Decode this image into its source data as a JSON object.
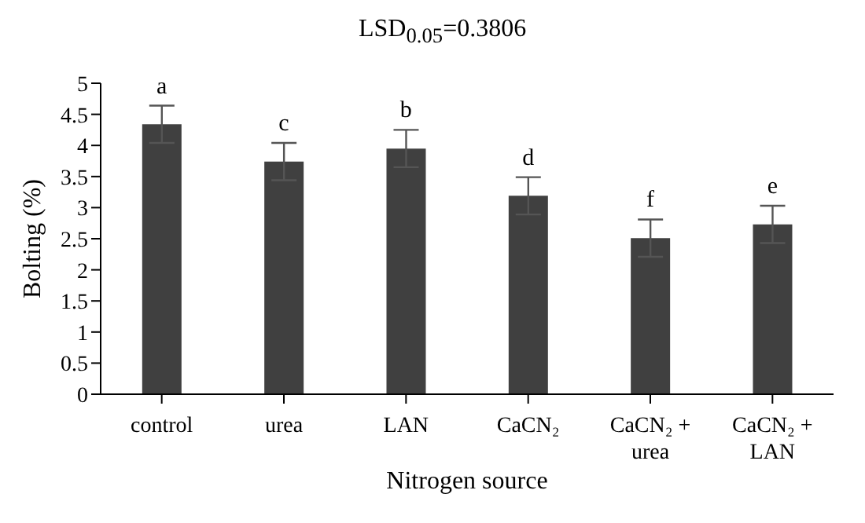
{
  "chart_data": {
    "type": "bar",
    "xlabel": "Nitrogen source",
    "ylabel": "Bolting (%)",
    "categories": [
      "control",
      "urea",
      "LAN",
      "CaCN₂",
      "CaCN₂ + urea",
      "CaCN₂ + LAN"
    ],
    "values": [
      4.34,
      3.74,
      3.95,
      3.19,
      2.51,
      2.73
    ],
    "errors": [
      0.3,
      0.3,
      0.3,
      0.3,
      0.3,
      0.3
    ],
    "color": "#404040",
    "ylim": [
      0,
      5
    ],
    "yticks": [
      0,
      0.5,
      1,
      1.5,
      2,
      2.5,
      3,
      3.5,
      4,
      4.5,
      5
    ],
    "grid": false,
    "legend": false,
    "annotations": [
      "LSD$_{0.05}$=0.3806",
      {
        "text": "a",
        "x": "control",
        "y": 4.64
      },
      {
        "text": "c",
        "x": "urea",
        "y": 4.04
      },
      {
        "text": "b",
        "x": "LAN",
        "y": 4.25
      },
      {
        "text": "d",
        "x": "CaCN₂",
        "y": 3.49
      },
      {
        "text": "f",
        "x": "CaCN₂ + urea",
        "y": 2.81
      },
      {
        "text": "e",
        "x": "CaCN₂ + LAN",
        "y": 3.03
      }
    ]
  }
}
